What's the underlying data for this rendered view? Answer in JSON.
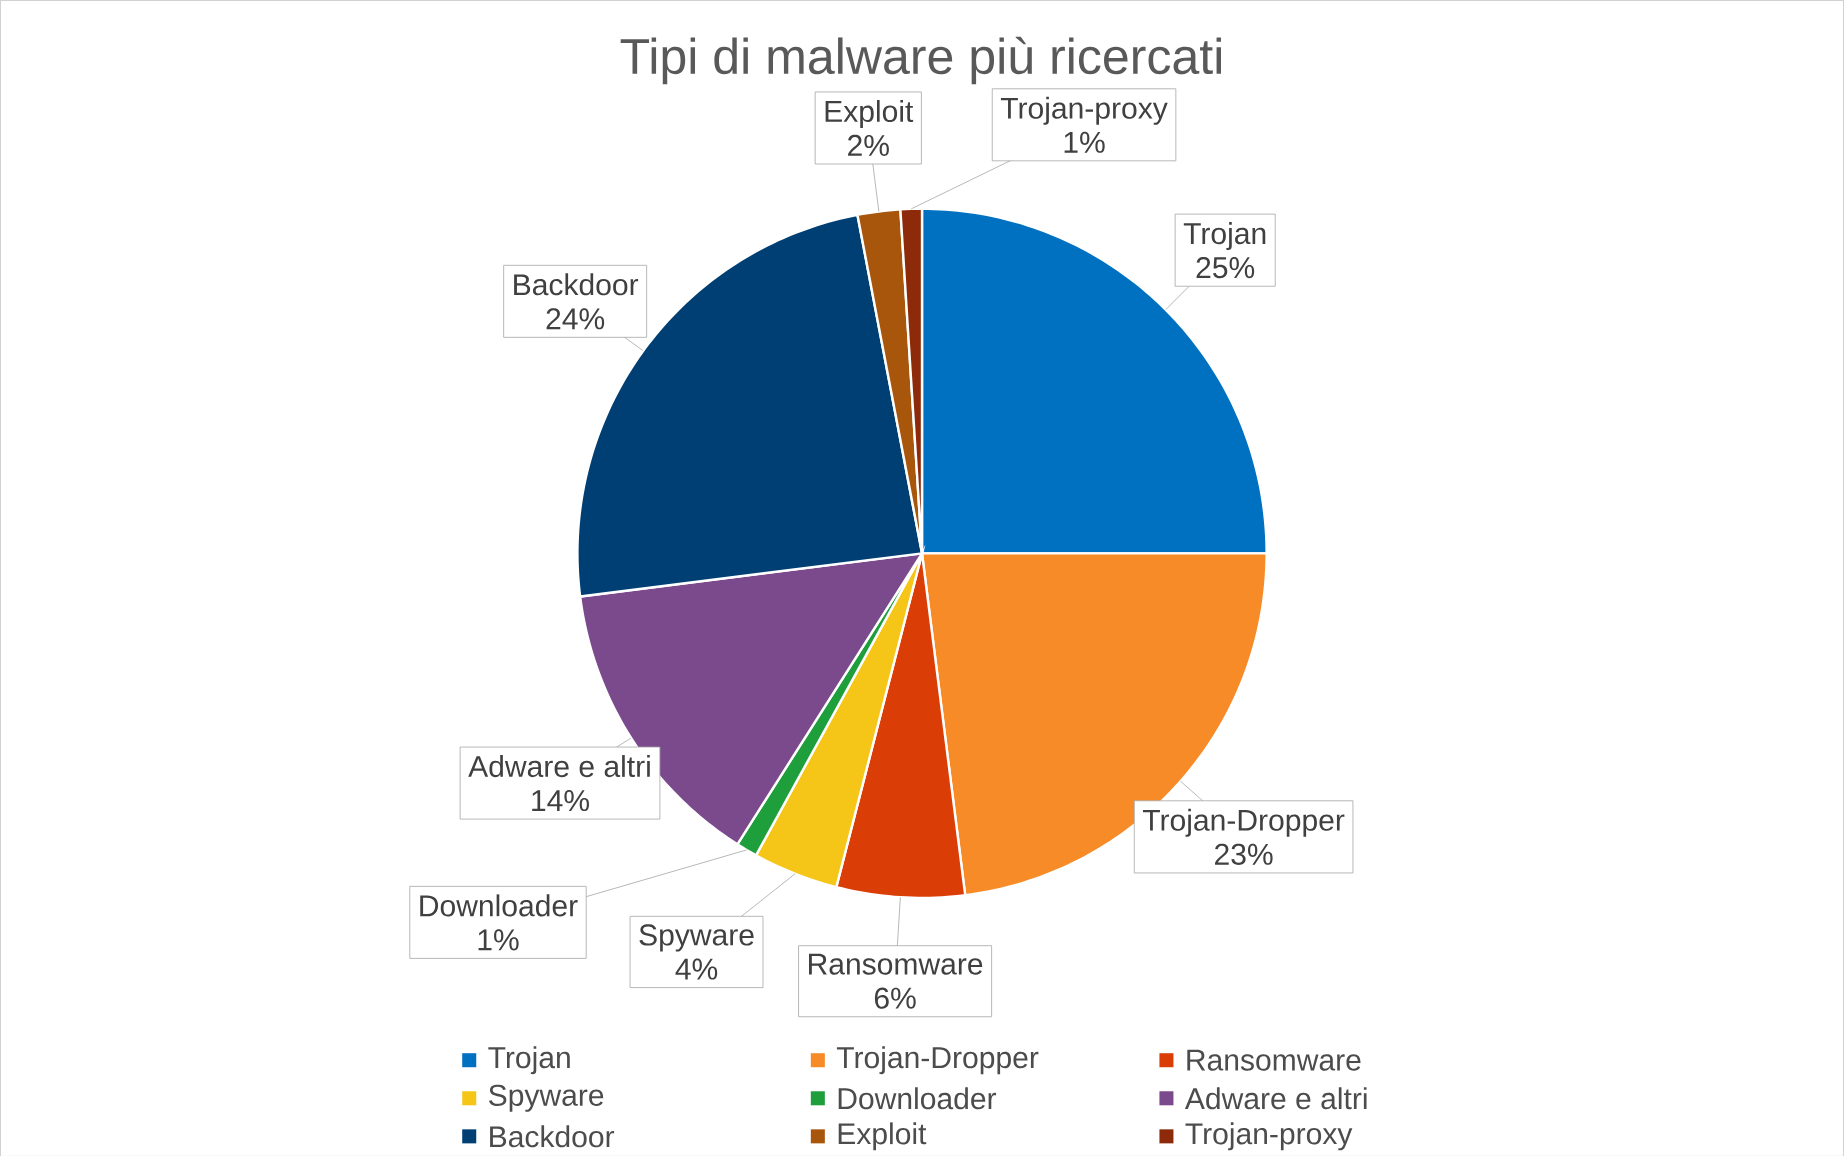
{
  "chart_data": {
    "type": "pie",
    "title": "Tipi di malware più ricercati",
    "categories": [
      "Trojan",
      "Trojan-Dropper",
      "Ransomware",
      "Spyware",
      "Downloader",
      "Adware e altri",
      "Backdoor",
      "Exploit",
      "Trojan-proxy"
    ],
    "values": [
      25,
      23,
      6,
      4,
      1,
      14,
      24,
      2,
      1
    ],
    "colors": [
      "#0070c0",
      "#f68b28",
      "#db3d06",
      "#f5c518",
      "#1f9e3c",
      "#7a4a8c",
      "#003f73",
      "#a8560c",
      "#8c2a0a"
    ],
    "value_labels": [
      "25%",
      "23%",
      "6%",
      "4%",
      "1%",
      "14%",
      "24%",
      "2%",
      "1%"
    ],
    "legend": "bottom"
  }
}
